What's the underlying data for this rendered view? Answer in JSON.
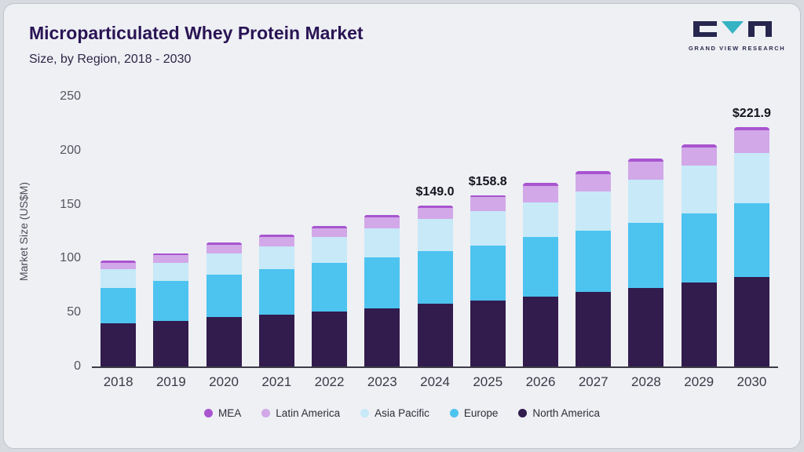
{
  "header": {
    "title": "Microparticulated Whey Protein Market",
    "subtitle": "Size, by Region, 2018 - 2030"
  },
  "logo": {
    "text": "GRAND VIEW RESEARCH",
    "accent_color": "#35b3c3",
    "dark_color": "#26264e"
  },
  "chart_data": {
    "type": "bar",
    "stacked": true,
    "title": "Microparticulated Whey Protein Market Size, by Region, 2018 - 2030",
    "ylabel": "Market Size (US$M)",
    "xlabel": "",
    "ylim": [
      0,
      250
    ],
    "yticks": [
      0,
      50,
      100,
      150,
      200,
      250
    ],
    "grid": false,
    "legend_position": "bottom",
    "categories": [
      "2018",
      "2019",
      "2020",
      "2021",
      "2022",
      "2023",
      "2024",
      "2025",
      "2026",
      "2027",
      "2028",
      "2029",
      "2030"
    ],
    "series": [
      {
        "name": "North America",
        "color": "#321b4d",
        "values": [
          40,
          42,
          46,
          48,
          51,
          54,
          58,
          61,
          65,
          69,
          73,
          78,
          83
        ]
      },
      {
        "name": "Europe",
        "color": "#4dc3f0",
        "values": [
          33,
          37,
          39,
          42,
          45,
          47,
          49,
          51,
          55,
          57,
          60,
          64,
          68
        ]
      },
      {
        "name": "Asia Pacific",
        "color": "#c7e9f8",
        "values": [
          17,
          17,
          20,
          21,
          24,
          27,
          30,
          32,
          32,
          36,
          40,
          44,
          47
        ]
      },
      {
        "name": "Latin America",
        "color": "#d2a8e8",
        "values": [
          6,
          7,
          8,
          9,
          8,
          10,
          10,
          12.8,
          15,
          16,
          17,
          17,
          20.9
        ]
      },
      {
        "name": "MEA",
        "color": "#a855cf",
        "values": [
          2,
          2,
          2,
          2,
          2,
          2,
          2,
          2,
          3,
          3,
          3,
          3,
          3
        ]
      }
    ],
    "totals": [
      98,
      105,
      115,
      122,
      130,
      140,
      149.0,
      158.8,
      170,
      181,
      193,
      206,
      221.9
    ],
    "legend": [
      "MEA",
      "Latin America",
      "Asia Pacific",
      "Europe",
      "North America"
    ],
    "annotations": [
      {
        "category": "2024",
        "text": "$149.0"
      },
      {
        "category": "2025",
        "text": "$158.8"
      },
      {
        "category": "2030",
        "text": "$221.9"
      }
    ]
  }
}
